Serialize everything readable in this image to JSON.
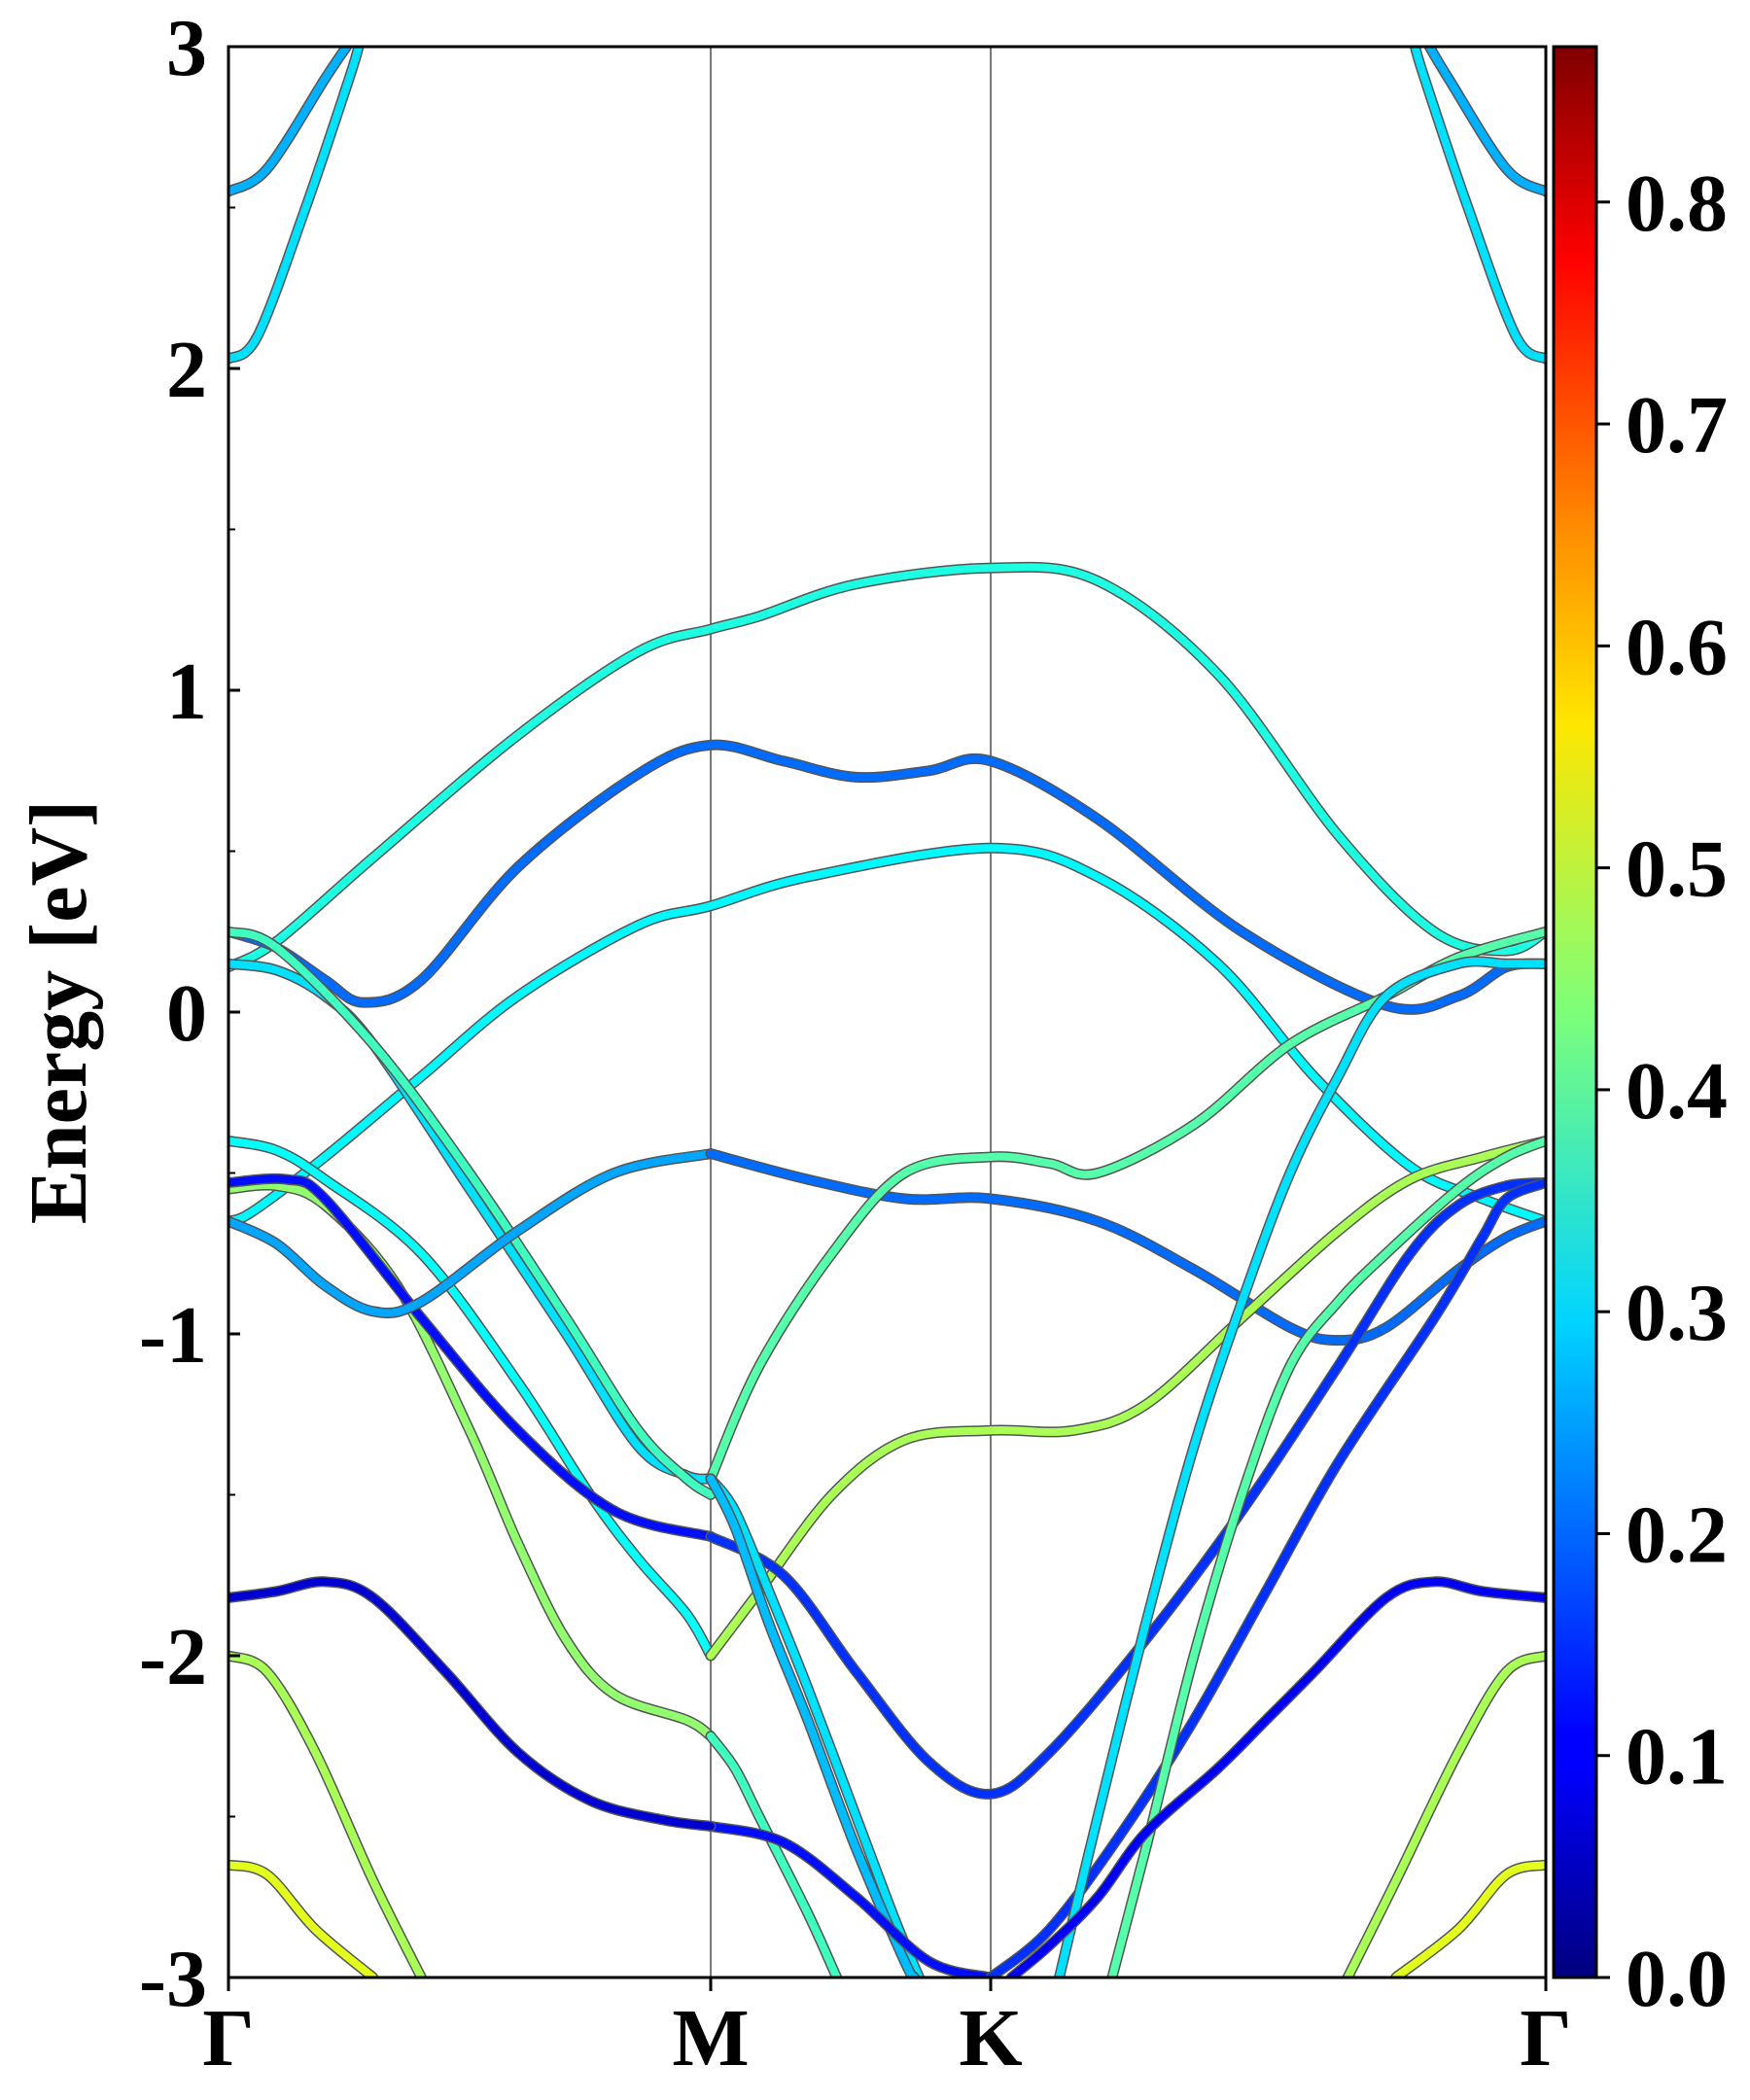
{
  "chart_data": {
    "type": "line",
    "title": "",
    "xlabel": "",
    "ylabel": "Energy [eV]",
    "ylim": [
      -3,
      3
    ],
    "x_ticks": [
      "Γ",
      "M",
      "K",
      "Γ"
    ],
    "y_ticks": [
      "-3",
      "-2",
      "-1",
      "0",
      "1",
      "2",
      "3"
    ],
    "y_minor_step": 0.5,
    "grid": "vertical lines at M and K",
    "colorbar": {
      "range": [
        0,
        0.87
      ],
      "ticks": [
        "0.0",
        "0.1",
        "0.2",
        "0.3",
        "0.4",
        "0.5",
        "0.6",
        "0.7",
        "0.8"
      ],
      "colormap": "jet"
    },
    "x_note": "k-path positions: Γ=0, M=1, K=1.5774, Γ=2.732 (relative path length)",
    "series": [
      {
        "points": [
          [
            0,
            2.55
          ],
          [
            0.08,
            2.62
          ],
          [
            0.2,
            2.9
          ],
          [
            0.245,
            3.0
          ]
        ],
        "weight": 0.26
      },
      {
        "points": [
          [
            0,
            2.03
          ],
          [
            0.06,
            2.1
          ],
          [
            0.16,
            2.5
          ],
          [
            0.25,
            2.9
          ],
          [
            0.27,
            3.0
          ]
        ],
        "weight": 0.3
      },
      {
        "points": [
          [
            2.732,
            2.55
          ],
          [
            2.65,
            2.62
          ],
          [
            2.53,
            2.9
          ],
          [
            2.49,
            3.0
          ]
        ],
        "weight": 0.26
      },
      {
        "points": [
          [
            2.732,
            2.03
          ],
          [
            2.67,
            2.1
          ],
          [
            2.57,
            2.5
          ],
          [
            2.48,
            2.9
          ],
          [
            2.46,
            3.0
          ]
        ],
        "weight": 0.3
      },
      {
        "points": [
          [
            0,
            0.14
          ],
          [
            0.1,
            0.22
          ],
          [
            0.3,
            0.48
          ],
          [
            0.6,
            0.86
          ],
          [
            0.85,
            1.12
          ],
          [
            1.0,
            1.19
          ],
          [
            1.1,
            1.23
          ],
          [
            1.3,
            1.33
          ],
          [
            1.5774,
            1.38
          ],
          [
            1.8,
            1.34
          ],
          [
            2.05,
            1.05
          ],
          [
            2.3,
            0.55
          ],
          [
            2.5,
            0.25
          ],
          [
            2.65,
            0.19
          ],
          [
            2.732,
            0.25
          ]
        ],
        "weight": 0.35
      },
      {
        "points": [
          [
            0,
            0.25
          ],
          [
            0.1,
            0.2
          ],
          [
            0.2,
            0.1
          ],
          [
            0.28,
            0.03
          ],
          [
            0.4,
            0.1
          ],
          [
            0.6,
            0.45
          ],
          [
            0.85,
            0.74
          ],
          [
            1.0,
            0.83
          ],
          [
            1.15,
            0.78
          ],
          [
            1.3,
            0.73
          ],
          [
            1.45,
            0.75
          ],
          [
            1.5774,
            0.78
          ],
          [
            1.8,
            0.6
          ],
          [
            2.1,
            0.25
          ],
          [
            2.4,
            0.02
          ],
          [
            2.55,
            0.05
          ],
          [
            2.65,
            0.14
          ],
          [
            2.732,
            0.15
          ]
        ],
        "weight": 0.2
      },
      {
        "points": [
          [
            0,
            -0.65
          ],
          [
            0.05,
            -0.62
          ],
          [
            0.2,
            -0.45
          ],
          [
            0.4,
            -0.2
          ],
          [
            0.6,
            0.05
          ],
          [
            0.85,
            0.27
          ],
          [
            1.0,
            0.33
          ],
          [
            1.2,
            0.42
          ],
          [
            1.5774,
            0.51
          ],
          [
            1.8,
            0.42
          ],
          [
            2.05,
            0.15
          ],
          [
            2.25,
            -0.2
          ],
          [
            2.45,
            -0.48
          ],
          [
            2.6,
            -0.58
          ],
          [
            2.732,
            -0.65
          ]
        ],
        "weight": 0.32
      },
      {
        "points": [
          [
            0,
            0.15
          ],
          [
            0.1,
            0.13
          ],
          [
            0.2,
            0.05
          ],
          [
            0.3,
            -0.1
          ],
          [
            0.5,
            -0.55
          ],
          [
            0.7,
            -1.0
          ],
          [
            0.85,
            -1.35
          ],
          [
            0.95,
            -1.44
          ],
          [
            1.0,
            -1.45
          ]
        ],
        "weight": 0.3
      },
      {
        "points": [
          [
            0,
            0.25
          ],
          [
            0.1,
            0.2
          ],
          [
            0.3,
            -0.1
          ],
          [
            0.5,
            -0.5
          ],
          [
            0.7,
            -0.95
          ],
          [
            0.85,
            -1.3
          ],
          [
            0.95,
            -1.45
          ],
          [
            1.0,
            -1.5
          ]
        ],
        "weight": 0.38
      },
      {
        "points": [
          [
            0,
            -0.4
          ],
          [
            0.1,
            -0.43
          ],
          [
            0.2,
            -0.52
          ],
          [
            0.4,
            -0.75
          ],
          [
            0.6,
            -1.15
          ],
          [
            0.75,
            -1.5
          ],
          [
            0.85,
            -1.7
          ],
          [
            0.95,
            -1.87
          ],
          [
            1.0,
            -2.0
          ]
        ],
        "weight": 0.33
      },
      {
        "points": [
          [
            0,
            -0.55
          ],
          [
            0.1,
            -0.54
          ],
          [
            0.2,
            -0.6
          ],
          [
            0.35,
            -0.85
          ],
          [
            0.5,
            -1.3
          ],
          [
            0.6,
            -1.65
          ],
          [
            0.7,
            -1.95
          ],
          [
            0.8,
            -2.12
          ],
          [
            0.95,
            -2.2
          ],
          [
            1.0,
            -2.25
          ]
        ],
        "weight": 0.45
      },
      {
        "points": [
          [
            0,
            -0.53
          ],
          [
            0.12,
            -0.52
          ],
          [
            0.2,
            -0.58
          ],
          [
            0.4,
            -0.95
          ],
          [
            0.6,
            -1.3
          ],
          [
            0.8,
            -1.55
          ],
          [
            1.0,
            -1.63
          ]
        ],
        "weight": 0.12
      },
      {
        "points": [
          [
            0,
            -0.65
          ],
          [
            0.1,
            -0.72
          ],
          [
            0.2,
            -0.85
          ],
          [
            0.3,
            -0.93
          ],
          [
            0.4,
            -0.9
          ],
          [
            0.6,
            -0.68
          ],
          [
            0.8,
            -0.5
          ],
          [
            1.0,
            -0.44
          ]
        ],
        "weight": 0.25
      },
      {
        "points": [
          [
            1.0,
            -0.44
          ],
          [
            1.2,
            -0.52
          ],
          [
            1.4,
            -0.58
          ],
          [
            1.5774,
            -0.58
          ],
          [
            1.8,
            -0.65
          ],
          [
            2.0,
            -0.8
          ],
          [
            2.2,
            -0.98
          ],
          [
            2.3,
            -1.02
          ],
          [
            2.4,
            -0.98
          ],
          [
            2.55,
            -0.8
          ],
          [
            2.65,
            -0.7
          ],
          [
            2.732,
            -0.65
          ]
        ],
        "weight": 0.2
      },
      {
        "points": [
          [
            1.0,
            -1.45
          ],
          [
            1.1,
            -1.1
          ],
          [
            1.25,
            -0.75
          ],
          [
            1.4,
            -0.5
          ],
          [
            1.5774,
            -0.45
          ],
          [
            1.7,
            -0.47
          ],
          [
            1.8,
            -0.5
          ],
          [
            2.0,
            -0.35
          ],
          [
            2.2,
            -0.1
          ],
          [
            2.4,
            0.05
          ],
          [
            2.55,
            0.17
          ],
          [
            2.732,
            0.25
          ]
        ],
        "weight": 0.4
      },
      {
        "points": [
          [
            1.0,
            -2.0
          ],
          [
            1.1,
            -1.8
          ],
          [
            1.25,
            -1.5
          ],
          [
            1.4,
            -1.33
          ],
          [
            1.5774,
            -1.3
          ],
          [
            1.75,
            -1.3
          ],
          [
            1.9,
            -1.22
          ],
          [
            2.1,
            -0.95
          ],
          [
            2.3,
            -0.68
          ],
          [
            2.45,
            -0.52
          ],
          [
            2.6,
            -0.45
          ],
          [
            2.732,
            -0.4
          ]
        ],
        "weight": 0.47
      },
      {
        "points": [
          [
            1.0,
            -1.63
          ],
          [
            1.15,
            -1.75
          ],
          [
            1.3,
            -2.05
          ],
          [
            1.45,
            -2.33
          ],
          [
            1.5774,
            -2.43
          ],
          [
            1.7,
            -2.3
          ],
          [
            1.9,
            -1.95
          ],
          [
            2.1,
            -1.55
          ],
          [
            2.3,
            -1.1
          ],
          [
            2.45,
            -0.75
          ],
          [
            2.55,
            -0.6
          ],
          [
            2.65,
            -0.54
          ],
          [
            2.732,
            -0.53
          ]
        ],
        "weight": 0.15
      },
      {
        "points": [
          [
            1.0,
            -1.45
          ],
          [
            1.05,
            -1.55
          ],
          [
            1.12,
            -1.8
          ],
          [
            1.2,
            -2.1
          ],
          [
            1.3,
            -2.5
          ],
          [
            1.38,
            -2.82
          ],
          [
            1.43,
            -3.0
          ]
        ],
        "weight": 0.3
      },
      {
        "points": [
          [
            1.0,
            -1.45
          ],
          [
            1.05,
            -1.6
          ],
          [
            1.12,
            -1.9
          ],
          [
            1.2,
            -2.2
          ],
          [
            1.3,
            -2.6
          ],
          [
            1.4,
            -2.95
          ],
          [
            1.42,
            -3.0
          ]
        ],
        "weight": 0.27
      },
      {
        "points": [
          [
            1.0,
            -2.25
          ],
          [
            1.05,
            -2.35
          ],
          [
            1.1,
            -2.5
          ],
          [
            1.2,
            -2.8
          ],
          [
            1.26,
            -3.0
          ]
        ],
        "weight": 0.38
      },
      {
        "points": [
          [
            1.0,
            -2.53
          ],
          [
            1.15,
            -2.58
          ],
          [
            1.3,
            -2.75
          ],
          [
            1.45,
            -2.95
          ],
          [
            1.5774,
            -3.0
          ]
        ],
        "weight": 0.12
      },
      {
        "points": [
          [
            1.5774,
            -3.0
          ],
          [
            1.7,
            -2.85
          ],
          [
            1.85,
            -2.55
          ],
          [
            2.0,
            -2.2
          ],
          [
            2.15,
            -1.8
          ],
          [
            2.3,
            -1.4
          ],
          [
            2.5,
            -0.95
          ],
          [
            2.6,
            -0.7
          ],
          [
            2.65,
            -0.58
          ],
          [
            2.732,
            -0.53
          ]
        ],
        "weight": 0.15
      },
      {
        "points": [
          [
            1.72,
            -3.0
          ],
          [
            1.8,
            -2.5
          ],
          [
            1.9,
            -1.9
          ],
          [
            2.0,
            -1.35
          ],
          [
            2.1,
            -0.9
          ],
          [
            2.2,
            -0.5
          ],
          [
            2.3,
            -0.2
          ],
          [
            2.4,
            0.05
          ],
          [
            2.55,
            0.15
          ],
          [
            2.65,
            0.15
          ],
          [
            2.732,
            0.15
          ]
        ],
        "weight": 0.3
      },
      {
        "points": [
          [
            1.83,
            -3.0
          ],
          [
            1.9,
            -2.6
          ],
          [
            2.0,
            -2.0
          ],
          [
            2.1,
            -1.5
          ],
          [
            2.2,
            -1.1
          ],
          [
            2.3,
            -0.9
          ],
          [
            2.4,
            -0.75
          ],
          [
            2.55,
            -0.55
          ],
          [
            2.65,
            -0.45
          ],
          [
            2.732,
            -0.4
          ]
        ],
        "weight": 0.4
      },
      {
        "points": [
          [
            0,
            -1.82
          ],
          [
            0.1,
            -1.8
          ],
          [
            0.2,
            -1.77
          ],
          [
            0.3,
            -1.82
          ],
          [
            0.45,
            -2.05
          ],
          [
            0.6,
            -2.3
          ],
          [
            0.75,
            -2.45
          ],
          [
            0.9,
            -2.51
          ],
          [
            1.0,
            -2.53
          ]
        ],
        "weight": 0.07
      },
      {
        "points": [
          [
            2.732,
            -1.82
          ],
          [
            2.6,
            -1.8
          ],
          [
            2.5,
            -1.77
          ],
          [
            2.4,
            -1.82
          ],
          [
            2.25,
            -2.05
          ],
          [
            2.15,
            -2.2
          ],
          [
            2.05,
            -2.35
          ],
          [
            1.9,
            -2.55
          ],
          [
            1.8,
            -2.75
          ],
          [
            1.7,
            -2.9
          ],
          [
            1.62,
            -3.0
          ]
        ],
        "weight": 0.1
      },
      {
        "points": [
          [
            0,
            -2.0
          ],
          [
            0.08,
            -2.05
          ],
          [
            0.18,
            -2.3
          ],
          [
            0.3,
            -2.7
          ],
          [
            0.4,
            -3.0
          ]
        ],
        "weight": 0.47
      },
      {
        "points": [
          [
            0,
            -2.65
          ],
          [
            0.08,
            -2.68
          ],
          [
            0.18,
            -2.85
          ],
          [
            0.3,
            -3.0
          ]
        ],
        "weight": 0.52
      },
      {
        "points": [
          [
            2.732,
            -2.0
          ],
          [
            2.65,
            -2.05
          ],
          [
            2.55,
            -2.3
          ],
          [
            2.42,
            -2.7
          ],
          [
            2.32,
            -3.0
          ]
        ],
        "weight": 0.47
      },
      {
        "points": [
          [
            2.732,
            -2.65
          ],
          [
            2.65,
            -2.68
          ],
          [
            2.55,
            -2.85
          ],
          [
            2.42,
            -3.0
          ]
        ],
        "weight": 0.52
      }
    ]
  }
}
